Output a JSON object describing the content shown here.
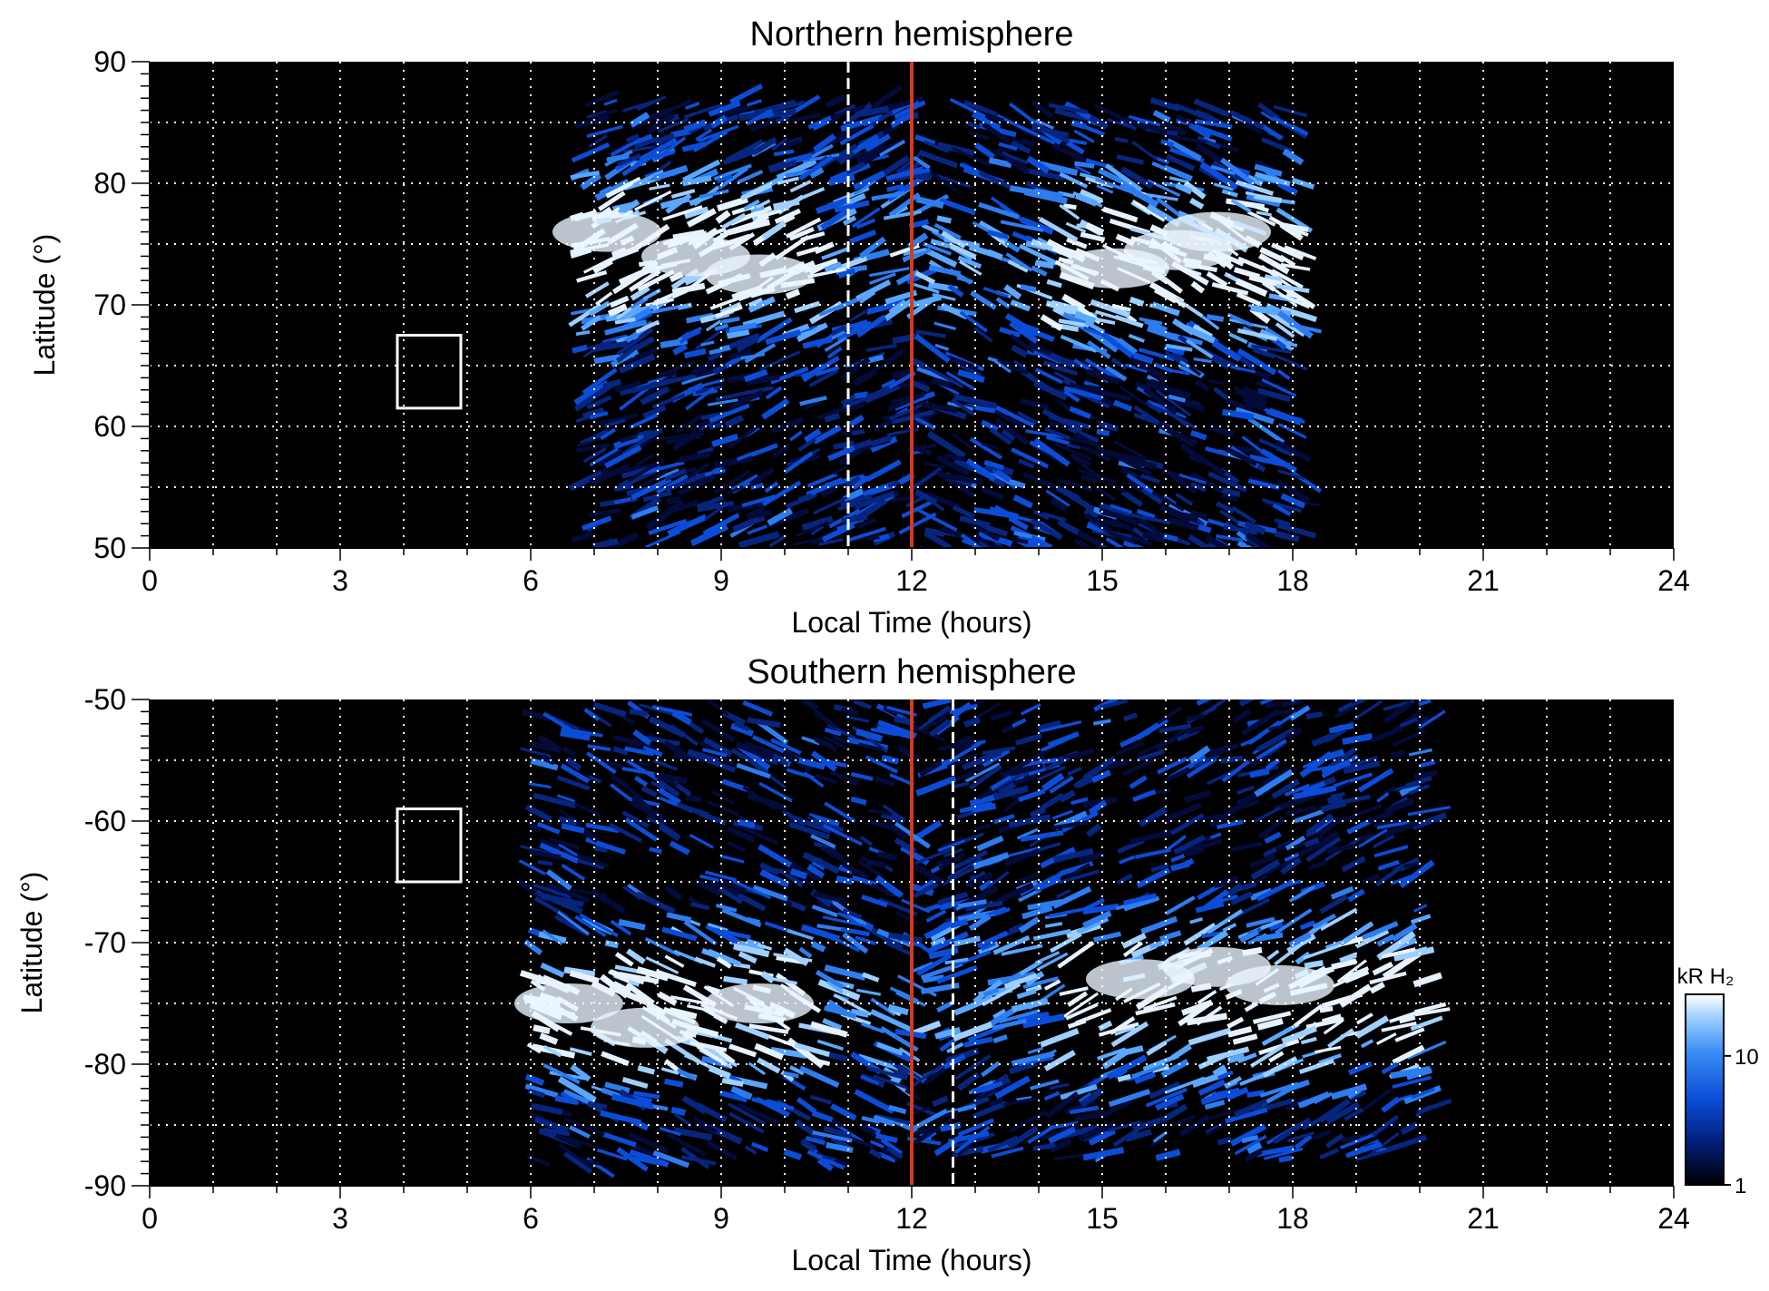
{
  "chart_data": [
    {
      "type": "heatmap",
      "title": "Northern hemisphere",
      "xlabel": "Local Time (hours)",
      "ylabel": "Latitude (°)",
      "xlim": [
        0,
        24
      ],
      "ylim": [
        50,
        90
      ],
      "xticks": [
        "0",
        "3",
        "6",
        "9",
        "12",
        "15",
        "18",
        "21",
        "24"
      ],
      "yticks": [
        "50",
        "60",
        "70",
        "80",
        "90"
      ],
      "grid": true,
      "background": "#000000",
      "marker_line_local_time": 12,
      "marker_line_color": "#d23b1e",
      "dashed_line_local_time": 11,
      "box": {
        "lt": [
          3.9,
          4.9
        ],
        "lat": [
          61.5,
          67.5
        ]
      },
      "data_extent_lt": [
        6.6,
        18.0
      ],
      "top_edge_lat": 87,
      "auroral_oval": "bright arcs near 70-78° at 7-10 h and 14-17 h, dimmer noisy emission poleward and equatorward"
    },
    {
      "type": "heatmap",
      "title": "Southern hemisphere",
      "xlabel": "Local Time (hours)",
      "ylabel": "Latitude (°)",
      "xlim": [
        0,
        24
      ],
      "ylim": [
        -90,
        -50
      ],
      "xticks": [
        "0",
        "3",
        "6",
        "9",
        "12",
        "15",
        "18",
        "21",
        "24"
      ],
      "yticks": [
        "-50",
        "-60",
        "-70",
        "-80",
        "-90"
      ],
      "grid": true,
      "background": "#000000",
      "marker_line_local_time": 12,
      "marker_line_color": "#d23b1e",
      "dashed_line_local_time": 12.65,
      "box": {
        "lt": [
          3.9,
          4.9
        ],
        "lat": [
          -65,
          -59
        ]
      },
      "data_extent_lt": [
        5.8,
        20.0
      ],
      "auroral_oval": "bright arcs near -70 to -80° at 6-10 h and 15-18.5 h, broad band wrapping toward -85°"
    }
  ],
  "colorbar": {
    "label": "kR H₂",
    "ticks": [
      "10",
      "1"
    ],
    "scale": "log",
    "range": [
      1,
      30
    ],
    "colors": [
      "#000000",
      "#031a6e",
      "#0b4dd8",
      "#3b8ef5",
      "#9fd0ff",
      "#ffffff"
    ]
  }
}
